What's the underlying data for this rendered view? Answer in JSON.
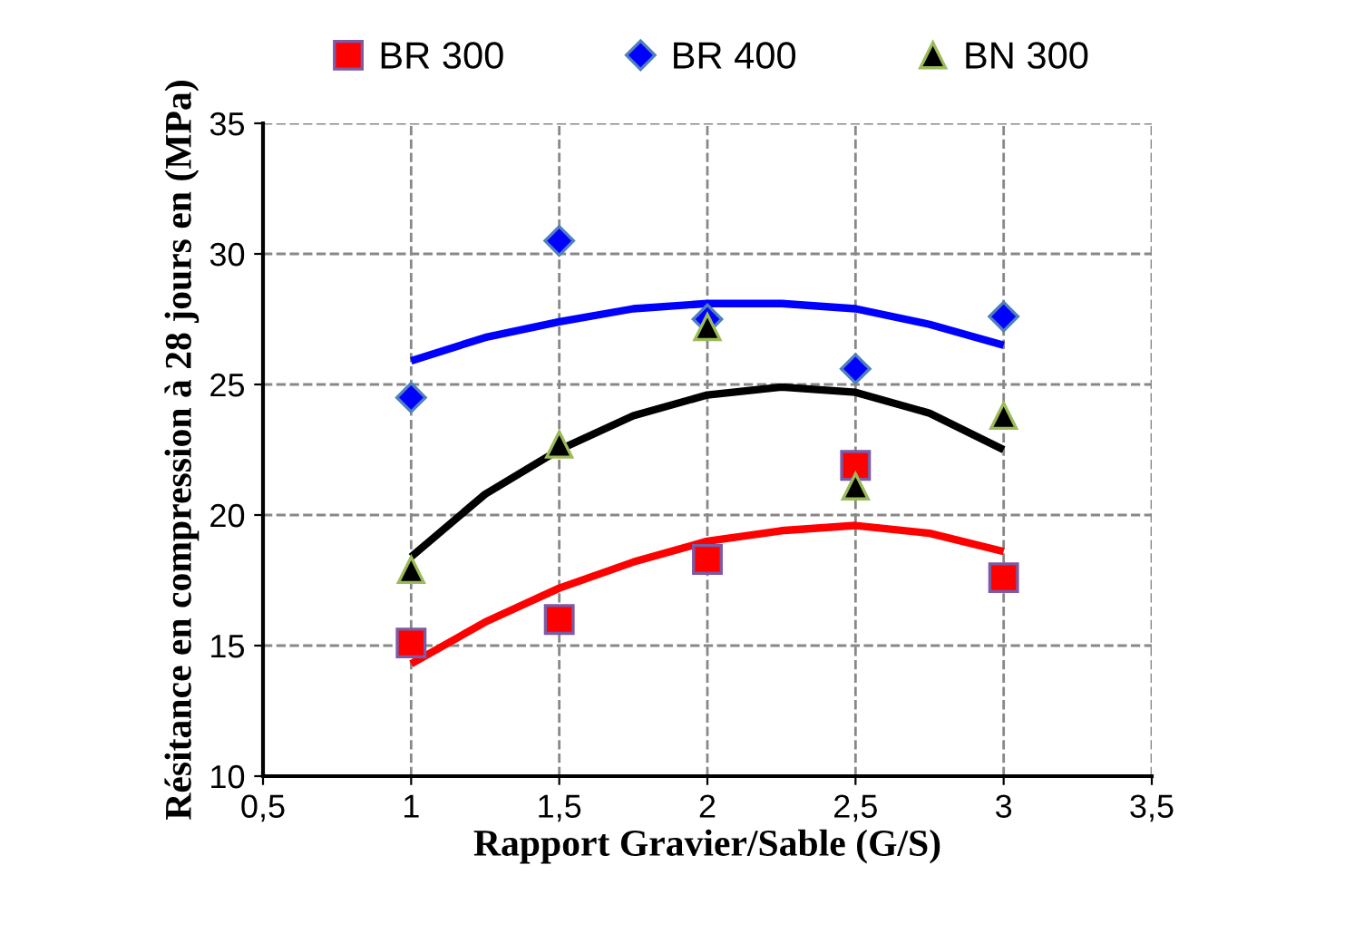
{
  "chart_data": {
    "type": "scatter",
    "xlabel": "Rapport Gravier/Sable (G/S)",
    "ylabel": "Résitance en compression à 28 jours en (MPa)",
    "xlim": [
      0.5,
      3.5
    ],
    "ylim": [
      10,
      35
    ],
    "xticks": [
      {
        "value": 0.5,
        "label": "0,5"
      },
      1,
      {
        "value": 1.5,
        "label": "1,5"
      },
      2,
      {
        "value": 2.5,
        "label": "2,5"
      },
      3,
      {
        "value": 3.5,
        "label": "3,5"
      }
    ],
    "yticks": [
      10,
      15,
      20,
      25,
      30,
      35
    ],
    "grid": true,
    "legend": "top",
    "series": [
      {
        "name": "BR 300",
        "color": "#ff0000",
        "marker": "square",
        "x": [
          1,
          1.5,
          2,
          2.5,
          3
        ],
        "values": [
          15.1,
          16.0,
          18.3,
          21.9,
          17.6
        ]
      },
      {
        "name": "BR 400",
        "color": "#0000ff",
        "marker": "diamond",
        "x": [
          1,
          1.5,
          2,
          2.5,
          3
        ],
        "values": [
          24.5,
          30.5,
          27.5,
          25.6,
          27.6
        ]
      },
      {
        "name": "BN 300",
        "color": "#000000",
        "marker": "triangle",
        "x": [
          1,
          1.5,
          2,
          2.5,
          3
        ],
        "values": [
          17.9,
          22.7,
          27.2,
          21.1,
          23.8
        ]
      },
      {
        "type": "line",
        "color": "#ff0000",
        "x": [
          1,
          1.25,
          1.5,
          1.75,
          2,
          2.25,
          2.5,
          2.75,
          3
        ],
        "values": [
          14.3,
          15.9,
          17.2,
          18.2,
          19.0,
          19.4,
          19.6,
          19.3,
          18.6
        ]
      },
      {
        "type": "line",
        "color": "#0000ff",
        "x": [
          1,
          1.25,
          1.5,
          1.75,
          2,
          2.25,
          2.5,
          2.75,
          3
        ],
        "values": [
          25.9,
          26.8,
          27.4,
          27.9,
          28.1,
          28.1,
          27.9,
          27.3,
          26.5
        ]
      },
      {
        "type": "line",
        "color": "#000000",
        "x": [
          1,
          1.25,
          1.5,
          1.75,
          2,
          2.25,
          2.5,
          2.75,
          3
        ],
        "values": [
          18.4,
          20.8,
          22.5,
          23.8,
          24.6,
          24.9,
          24.7,
          23.9,
          22.5
        ]
      }
    ]
  }
}
